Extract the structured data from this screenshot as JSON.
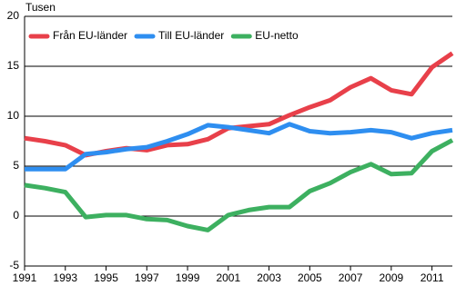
{
  "chart_data": {
    "type": "line",
    "y_unit": "Tusen",
    "x": [
      1991,
      1992,
      1993,
      1994,
      1995,
      1996,
      1997,
      1998,
      1999,
      2000,
      2001,
      2002,
      2003,
      2004,
      2005,
      2006,
      2007,
      2008,
      2009,
      2010,
      2011,
      2012
    ],
    "xlim": [
      1991,
      2012
    ],
    "xticks": [
      1991,
      1993,
      1995,
      1997,
      1999,
      2001,
      2003,
      2005,
      2007,
      2009,
      2011
    ],
    "ylim": [
      -5,
      20
    ],
    "yticks": [
      -5,
      0,
      5,
      10,
      15,
      20
    ],
    "grid": true,
    "legend": "top-left",
    "series": [
      {
        "name": "Från EU-länder",
        "color": "#e8404a",
        "values": [
          7.8,
          7.5,
          7.1,
          6.1,
          6.5,
          6.8,
          6.6,
          7.1,
          7.2,
          7.7,
          8.8,
          9.0,
          9.2,
          10.1,
          10.9,
          11.6,
          12.9,
          13.8,
          12.6,
          12.2,
          14.9,
          16.3
        ]
      },
      {
        "name": "Till EU-länder",
        "color": "#2e8ef0",
        "values": [
          4.7,
          4.7,
          4.7,
          6.2,
          6.4,
          6.7,
          6.9,
          7.5,
          8.2,
          9.1,
          8.9,
          8.6,
          8.3,
          9.2,
          8.5,
          8.3,
          8.4,
          8.6,
          8.4,
          7.8,
          8.3,
          8.6
        ]
      },
      {
        "name": "EU-netto",
        "color": "#3db060",
        "values": [
          3.1,
          2.8,
          2.4,
          -0.1,
          0.1,
          0.1,
          -0.3,
          -0.4,
          -1.0,
          -1.4,
          0.1,
          0.6,
          0.9,
          0.9,
          2.5,
          3.3,
          4.4,
          5.2,
          4.2,
          4.3,
          6.5,
          7.6
        ]
      }
    ]
  }
}
